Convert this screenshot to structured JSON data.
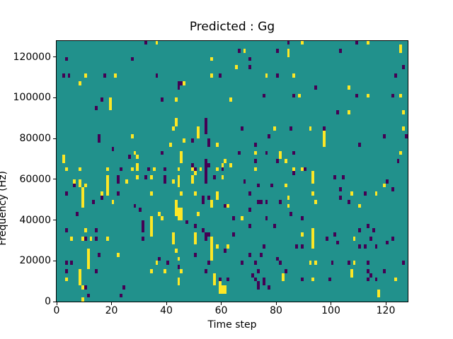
{
  "figure": {
    "title": "Predicted : Gg",
    "xlabel": "Time step",
    "ylabel": "Frequency (Hz)"
  },
  "chart_data": {
    "type": "heatmap",
    "title": "Predicted : Gg",
    "xlabel": "Time step",
    "ylabel": "Frequency (Hz)",
    "xlim": [
      0,
      128
    ],
    "ylim": [
      0,
      128000
    ],
    "x_ticks": [
      0,
      20,
      40,
      60,
      80,
      100,
      120
    ],
    "y_ticks": [
      0,
      20000,
      40000,
      60000,
      80000,
      100000,
      120000
    ],
    "grid": {
      "cols": 128,
      "rows": 64,
      "hz_per_row": 2000
    },
    "legend": "none",
    "colors": {
      "background_mid": "#21918c",
      "low": "#440154",
      "high": "#fde725",
      "spine": "#000000",
      "figure_bg": "#ffffff"
    },
    "cells_note": "sparse ternary mask on viridis: [time_step, freq_bin(2kHz each)]",
    "high_cells": [
      [
        36,
        63
      ],
      [
        89,
        63
      ],
      [
        113,
        63
      ],
      [
        125,
        62
      ],
      [
        68,
        61
      ],
      [
        84,
        61
      ],
      [
        125,
        61
      ],
      [
        84,
        60
      ],
      [
        56,
        59
      ],
      [
        65,
        57
      ],
      [
        10,
        55
      ],
      [
        21,
        55
      ],
      [
        56,
        55
      ],
      [
        76,
        55
      ],
      [
        86,
        55
      ],
      [
        8,
        53
      ],
      [
        46,
        53
      ],
      [
        106,
        52
      ],
      [
        19,
        49
      ],
      [
        19,
        48
      ],
      [
        19,
        47
      ],
      [
        43,
        49
      ],
      [
        63,
        49
      ],
      [
        88,
        50
      ],
      [
        113,
        50
      ],
      [
        125,
        50
      ],
      [
        106,
        46
      ],
      [
        126,
        46
      ],
      [
        43,
        44
      ],
      [
        43,
        43
      ],
      [
        42,
        42
      ],
      [
        51,
        42
      ],
      [
        79,
        42
      ],
      [
        92,
        42
      ],
      [
        126,
        42
      ],
      [
        51,
        41
      ],
      [
        97,
        41
      ],
      [
        51,
        40
      ],
      [
        27,
        40
      ],
      [
        97,
        40
      ],
      [
        97,
        39
      ],
      [
        46,
        39
      ],
      [
        41,
        38
      ],
      [
        97,
        38
      ],
      [
        58,
        38
      ],
      [
        28,
        36
      ],
      [
        45,
        36
      ],
      [
        72,
        36
      ],
      [
        81,
        36
      ],
      [
        125,
        36
      ],
      [
        2,
        35
      ],
      [
        29,
        35
      ],
      [
        45,
        35
      ],
      [
        81,
        35
      ],
      [
        2,
        34
      ],
      [
        45,
        34
      ],
      [
        61,
        34
      ],
      [
        83,
        34
      ],
      [
        63,
        33
      ],
      [
        60,
        33
      ],
      [
        29,
        33
      ],
      [
        3,
        32
      ],
      [
        8,
        32
      ],
      [
        18,
        32
      ],
      [
        27,
        32
      ],
      [
        29,
        32
      ],
      [
        35,
        32
      ],
      [
        44,
        32
      ],
      [
        49,
        32
      ],
      [
        52,
        32
      ],
      [
        58,
        32
      ],
      [
        72,
        32
      ],
      [
        86,
        32
      ],
      [
        89,
        32
      ],
      [
        50,
        31
      ],
      [
        93,
        31
      ],
      [
        18,
        30
      ],
      [
        29,
        30
      ],
      [
        34,
        30
      ],
      [
        44,
        30
      ],
      [
        49,
        30
      ],
      [
        60,
        30
      ],
      [
        93,
        30
      ],
      [
        6,
        29
      ],
      [
        8,
        29
      ],
      [
        18,
        29
      ],
      [
        25,
        29
      ],
      [
        42,
        29
      ],
      [
        44,
        29
      ],
      [
        49,
        29
      ],
      [
        93,
        29
      ],
      [
        8,
        28
      ],
      [
        10,
        28
      ],
      [
        18,
        28
      ],
      [
        44,
        28
      ],
      [
        83,
        28
      ],
      [
        119,
        28
      ],
      [
        9,
        27
      ],
      [
        18,
        27
      ],
      [
        9,
        26
      ],
      [
        16,
        26
      ],
      [
        18,
        26
      ],
      [
        34,
        26
      ],
      [
        45,
        26
      ],
      [
        50,
        26
      ],
      [
        58,
        26
      ],
      [
        93,
        26
      ],
      [
        107,
        26
      ],
      [
        116,
        26
      ],
      [
        9,
        25
      ],
      [
        58,
        25
      ],
      [
        84,
        25
      ],
      [
        9,
        24
      ],
      [
        20,
        24
      ],
      [
        43,
        24
      ],
      [
        56,
        24
      ],
      [
        94,
        24
      ],
      [
        9,
        23
      ],
      [
        43,
        23
      ],
      [
        56,
        23
      ],
      [
        62,
        23
      ],
      [
        84,
        23
      ],
      [
        110,
        23
      ],
      [
        43,
        22
      ],
      [
        44,
        22
      ],
      [
        45,
        22
      ],
      [
        37,
        21
      ],
      [
        43,
        21
      ],
      [
        44,
        21
      ],
      [
        45,
        21
      ],
      [
        51,
        21
      ],
      [
        34,
        20
      ],
      [
        38,
        20
      ],
      [
        44,
        20
      ],
      [
        45,
        20
      ],
      [
        67,
        20
      ],
      [
        34,
        19
      ],
      [
        34,
        18
      ],
      [
        34,
        17
      ],
      [
        10,
        17
      ],
      [
        93,
        17
      ],
      [
        34,
        16
      ],
      [
        42,
        16
      ],
      [
        50,
        16
      ],
      [
        89,
        16
      ],
      [
        93,
        16
      ],
      [
        5,
        15
      ],
      [
        9,
        15
      ],
      [
        12,
        15
      ],
      [
        18,
        15
      ],
      [
        42,
        15
      ],
      [
        50,
        15
      ],
      [
        56,
        15
      ],
      [
        93,
        15
      ],
      [
        108,
        15
      ],
      [
        42,
        14
      ],
      [
        50,
        14
      ],
      [
        56,
        14
      ],
      [
        93,
        14
      ],
      [
        56,
        13
      ],
      [
        58,
        13
      ],
      [
        62,
        13
      ],
      [
        93,
        13
      ],
      [
        11,
        12
      ],
      [
        43,
        12
      ],
      [
        56,
        12
      ],
      [
        11,
        11
      ],
      [
        22,
        11
      ],
      [
        56,
        11
      ],
      [
        11,
        10
      ],
      [
        44,
        10
      ],
      [
        56,
        10
      ],
      [
        11,
        9
      ],
      [
        36,
        9
      ],
      [
        92,
        9
      ],
      [
        94,
        9
      ],
      [
        108,
        9
      ],
      [
        11,
        8
      ],
      [
        8,
        7
      ],
      [
        34,
        7
      ],
      [
        39,
        7
      ],
      [
        45,
        7
      ],
      [
        107,
        7
      ],
      [
        8,
        6
      ],
      [
        57,
        6
      ],
      [
        82,
        6
      ],
      [
        107,
        6
      ],
      [
        3,
        5
      ],
      [
        8,
        5
      ],
      [
        44,
        5
      ],
      [
        57,
        5
      ],
      [
        82,
        5
      ],
      [
        93,
        5
      ],
      [
        123,
        5
      ],
      [
        8,
        4
      ],
      [
        44,
        4
      ],
      [
        57,
        4
      ],
      [
        59,
        4
      ],
      [
        9,
        3
      ],
      [
        59,
        3
      ],
      [
        60,
        3
      ],
      [
        61,
        3
      ],
      [
        59,
        2
      ],
      [
        60,
        2
      ],
      [
        61,
        2
      ],
      [
        117,
        2
      ],
      [
        117,
        1
      ],
      [
        9,
        0
      ]
    ],
    "low_cells": [
      [
        32,
        63
      ],
      [
        84,
        63
      ],
      [
        109,
        63
      ],
      [
        66,
        61
      ],
      [
        80,
        61
      ],
      [
        103,
        61
      ],
      [
        3,
        59
      ],
      [
        27,
        59
      ],
      [
        70,
        59
      ],
      [
        70,
        57
      ],
      [
        126,
        57
      ],
      [
        2,
        55
      ],
      [
        4,
        55
      ],
      [
        17,
        55
      ],
      [
        36,
        55
      ],
      [
        59,
        55
      ],
      [
        80,
        55
      ],
      [
        123,
        55
      ],
      [
        44,
        53
      ],
      [
        45,
        53
      ],
      [
        44,
        52
      ],
      [
        94,
        52
      ],
      [
        75,
        50
      ],
      [
        86,
        50
      ],
      [
        109,
        50
      ],
      [
        122,
        50
      ],
      [
        16,
        49
      ],
      [
        38,
        49
      ],
      [
        14,
        47
      ],
      [
        102,
        46
      ],
      [
        54,
        44
      ],
      [
        54,
        43
      ],
      [
        54,
        42
      ],
      [
        54,
        41
      ],
      [
        67,
        42
      ],
      [
        85,
        42
      ],
      [
        97,
        42
      ],
      [
        15,
        40
      ],
      [
        15,
        39
      ],
      [
        77,
        40
      ],
      [
        119,
        40
      ],
      [
        127,
        40
      ],
      [
        49,
        39
      ],
      [
        55,
        39
      ],
      [
        55,
        38
      ],
      [
        72,
        38
      ],
      [
        110,
        38
      ],
      [
        20,
        37
      ],
      [
        38,
        36
      ],
      [
        66,
        36
      ],
      [
        76,
        36
      ],
      [
        86,
        36
      ],
      [
        26,
        35
      ],
      [
        72,
        34
      ],
      [
        80,
        34
      ],
      [
        124,
        34
      ],
      [
        54,
        34
      ],
      [
        49,
        33
      ],
      [
        54,
        33
      ],
      [
        55,
        33
      ],
      [
        23,
        32
      ],
      [
        33,
        32
      ],
      [
        39,
        32
      ],
      [
        50,
        32
      ],
      [
        54,
        32
      ],
      [
        60,
        32
      ],
      [
        90,
        32
      ],
      [
        86,
        31
      ],
      [
        54,
        31
      ],
      [
        22,
        30
      ],
      [
        32,
        30
      ],
      [
        39,
        30
      ],
      [
        57,
        30
      ],
      [
        101,
        30
      ],
      [
        104,
        30
      ],
      [
        54,
        30
      ],
      [
        22,
        29
      ],
      [
        39,
        29
      ],
      [
        54,
        29
      ],
      [
        68,
        29
      ],
      [
        120,
        29
      ],
      [
        6,
        28
      ],
      [
        73,
        28
      ],
      [
        78,
        28
      ],
      [
        103,
        27
      ],
      [
        122,
        27
      ],
      [
        3,
        26
      ],
      [
        22,
        26
      ],
      [
        70,
        26
      ],
      [
        112,
        26
      ],
      [
        16,
        25
      ],
      [
        53,
        25
      ],
      [
        55,
        25
      ],
      [
        103,
        25
      ],
      [
        13,
        24
      ],
      [
        53,
        24
      ],
      [
        73,
        24
      ],
      [
        74,
        24
      ],
      [
        76,
        24
      ],
      [
        81,
        24
      ],
      [
        106,
        24
      ],
      [
        28,
        23
      ],
      [
        61,
        23
      ],
      [
        30,
        22
      ],
      [
        70,
        22
      ],
      [
        7,
        21
      ],
      [
        85,
        21
      ],
      [
        64,
        20
      ],
      [
        76,
        20
      ],
      [
        89,
        20
      ],
      [
        31,
        19
      ],
      [
        47,
        19
      ],
      [
        31,
        18
      ],
      [
        50,
        18
      ],
      [
        70,
        18
      ],
      [
        79,
        18
      ],
      [
        113,
        18
      ],
      [
        3,
        17
      ],
      [
        14,
        17
      ],
      [
        31,
        17
      ],
      [
        53,
        17
      ],
      [
        110,
        17
      ],
      [
        115,
        17
      ],
      [
        54,
        16
      ],
      [
        55,
        16
      ],
      [
        64,
        16
      ],
      [
        101,
        16
      ],
      [
        10,
        15
      ],
      [
        14,
        15
      ],
      [
        31,
        15
      ],
      [
        54,
        15
      ],
      [
        98,
        15
      ],
      [
        114,
        15
      ],
      [
        122,
        15
      ],
      [
        102,
        14
      ],
      [
        120,
        14
      ],
      [
        75,
        13
      ],
      [
        87,
        13
      ],
      [
        89,
        13
      ],
      [
        110,
        13
      ],
      [
        112,
        13
      ],
      [
        116,
        13
      ],
      [
        61,
        12
      ],
      [
        15,
        11
      ],
      [
        50,
        11
      ],
      [
        70,
        11
      ],
      [
        74,
        11
      ],
      [
        37,
        10
      ],
      [
        80,
        10
      ],
      [
        3,
        9
      ],
      [
        5,
        9
      ],
      [
        40,
        9
      ],
      [
        55,
        9
      ],
      [
        67,
        9
      ],
      [
        72,
        9
      ],
      [
        81,
        9
      ],
      [
        100,
        9
      ],
      [
        106,
        9
      ],
      [
        113,
        9
      ],
      [
        126,
        9
      ],
      [
        44,
        8
      ],
      [
        3,
        7
      ],
      [
        14,
        7
      ],
      [
        54,
        7
      ],
      [
        73,
        7
      ],
      [
        83,
        7
      ],
      [
        113,
        7
      ],
      [
        119,
        7
      ],
      [
        71,
        6
      ],
      [
        114,
        6
      ],
      [
        59,
        5
      ],
      [
        62,
        5
      ],
      [
        72,
        5
      ],
      [
        75,
        5
      ],
      [
        89,
        5
      ],
      [
        99,
        5
      ],
      [
        113,
        5
      ],
      [
        116,
        5
      ],
      [
        73,
        4
      ],
      [
        75,
        4
      ],
      [
        10,
        3
      ],
      [
        24,
        3
      ],
      [
        73,
        3
      ],
      [
        77,
        3
      ],
      [
        23,
        1
      ],
      [
        11,
        1
      ]
    ]
  }
}
